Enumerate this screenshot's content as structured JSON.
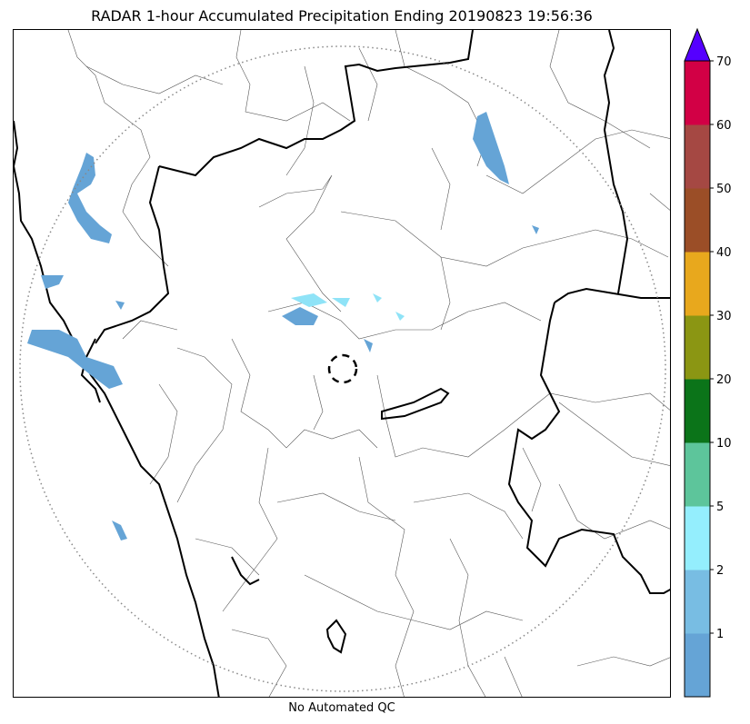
{
  "title": "RADAR 1-hour Accumulated Precipitation Ending 20190823 19:56:36",
  "footer_note": "No Automated QC",
  "colorbar": {
    "tick_labels": [
      "1",
      "2",
      "5",
      "10",
      "20",
      "30",
      "40",
      "50",
      "60",
      "70"
    ],
    "colors": [
      "#65a4d6",
      "#78bde3",
      "#94eefd",
      "#5dc59b",
      "#0b7419",
      "#8b9613",
      "#e8a81d",
      "#9b4e27",
      "#a54843",
      "#d20045"
    ],
    "extend_color": "#5500ff",
    "units": ""
  },
  "map": {
    "precip_color": "#65a4d6",
    "light_precip_color": "#8fe3f7",
    "range_ring": "dotted",
    "radar_site_marker": "dashed-circle"
  }
}
